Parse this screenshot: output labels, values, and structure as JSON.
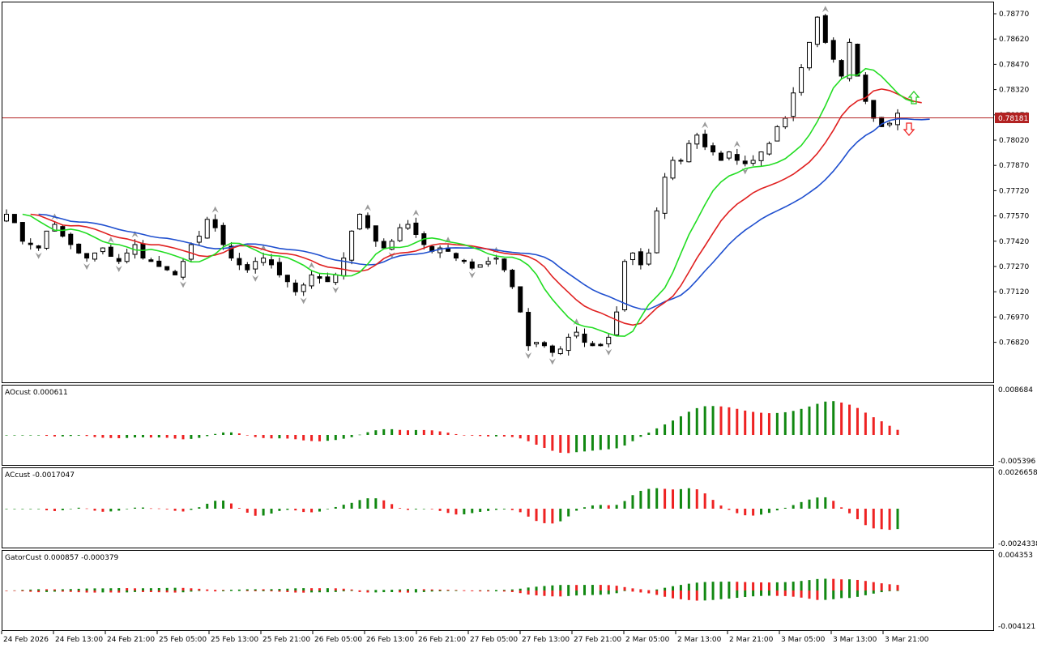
{
  "colors": {
    "background": "#ffffff",
    "frame": "#000000",
    "bull_candle_fill": "#ffffff",
    "bear_candle_fill": "#000000",
    "alligator_jaw": "#1f4fcf",
    "alligator_teeth": "#e02020",
    "alligator_lips": "#22dd22",
    "current_price_line": "#b22222",
    "bar_up": "#118811",
    "bar_down": "#ee2222",
    "fractal": "#9a9a9a"
  },
  "panes": {
    "main": {
      "price_ticks": [
        "0.78770",
        "0.78620",
        "0.78470",
        "0.78320",
        "0.78170",
        "0.78020",
        "0.77870",
        "0.77720",
        "0.77570",
        "0.77420",
        "0.77270",
        "0.77120",
        "0.76970",
        "0.76820"
      ],
      "current_price": "0.78181",
      "arrow_up_icon": "signal-arrow-up-icon",
      "arrow_down_icon": "signal-arrow-down-icon"
    },
    "ao": {
      "label": "AOcust 0.000611",
      "max_label": "0.008684",
      "min_label": "-0.005396"
    },
    "ac": {
      "label": "ACcust -0.0017047",
      "max_label": "0.0026658",
      "min_label": "-0.0024338"
    },
    "gator": {
      "label": "GatorCust 0.000857 -0.000379",
      "max_label": "0.004353",
      "min_label": "-0.004121"
    }
  },
  "time_axis": [
    "24 Feb 2026",
    "24 Feb 13:00",
    "24 Feb 21:00",
    "25 Feb 05:00",
    "25 Feb 13:00",
    "25 Feb 21:00",
    "26 Feb 05:00",
    "26 Feb 13:00",
    "26 Feb 21:00",
    "27 Feb 05:00",
    "27 Feb 13:00",
    "27 Feb 21:00",
    "2 Mar 05:00",
    "2 Mar 13:00",
    "2 Mar 21:00",
    "3 Mar 05:00",
    "3 Mar 13:00",
    "3 Mar 21:00"
  ],
  "chart_data": {
    "type": "candlestick",
    "symbol_timeframe": "",
    "close_series": [
      0.7758,
      0.7753,
      0.7742,
      0.774,
      0.7738,
      0.7748,
      0.7752,
      0.7745,
      0.774,
      0.7735,
      0.7732,
      0.7735,
      0.7738,
      0.7733,
      0.773,
      0.7735,
      0.774,
      0.7732,
      0.773,
      0.7727,
      0.7725,
      0.7722,
      0.773,
      0.774,
      0.7745,
      0.7755,
      0.775,
      0.774,
      0.7732,
      0.7728,
      0.7725,
      0.773,
      0.7732,
      0.7728,
      0.7722,
      0.7718,
      0.7712,
      0.7716,
      0.7722,
      0.772,
      0.7718,
      0.7722,
      0.7732,
      0.7748,
      0.7758,
      0.775,
      0.7742,
      0.7738,
      0.7742,
      0.775,
      0.7752,
      0.7746,
      0.774,
      0.7736,
      0.7738,
      0.7736,
      0.7732,
      0.773,
      0.7726,
      0.7728,
      0.773,
      0.7732,
      0.7725,
      0.7715,
      0.77,
      0.768,
      0.7682,
      0.768,
      0.7676,
      0.7678,
      0.7685,
      0.7688,
      0.7682,
      0.768,
      0.768,
      0.7685,
      0.77,
      0.773,
      0.7735,
      0.7728,
      0.7735,
      0.776,
      0.778,
      0.779,
      0.779,
      0.78,
      0.7805,
      0.7798,
      0.7795,
      0.779,
      0.7795,
      0.779,
      0.7788,
      0.779,
      0.7795,
      0.78,
      0.781,
      0.7815,
      0.783,
      0.7845,
      0.786,
      0.7875,
      0.786,
      0.785,
      0.784,
      0.786,
      0.784,
      0.7825,
      0.7815,
      0.781,
      0.7812,
      0.7818
    ],
    "indicators": [
      "Alligator (jaw, teeth, lips)",
      "Awesome Oscillator",
      "Accelerator Oscillator",
      "Gator Oscillator",
      "Fractals"
    ]
  }
}
